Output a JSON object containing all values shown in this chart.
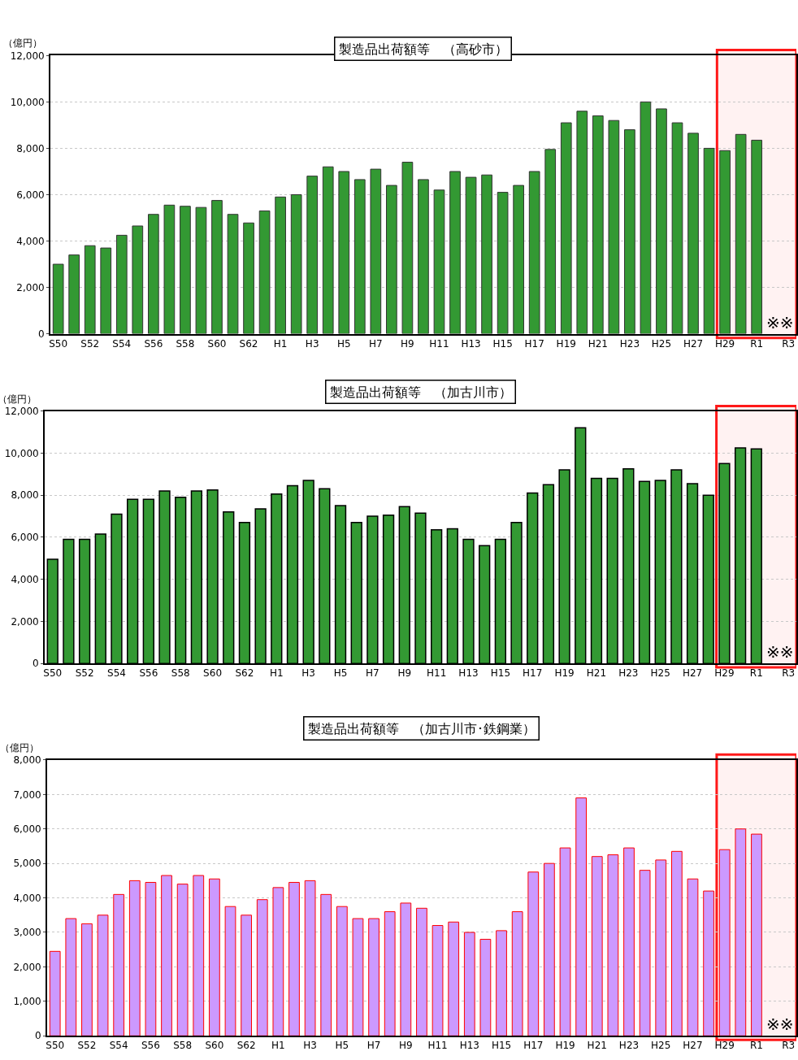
{
  "chart_data": [
    {
      "type": "bar",
      "title": "製造品出荷額等　（高砂市）",
      "ylabel": "（億円）",
      "categories": [
        "S50",
        null,
        "S52",
        null,
        "S54",
        null,
        "S56",
        null,
        "S58",
        null,
        "S60",
        null,
        "S62",
        null,
        "H1",
        null,
        "H3",
        null,
        "H5",
        null,
        "H7",
        null,
        "H9",
        null,
        "H11",
        null,
        "H13",
        null,
        "H15",
        null,
        "H17",
        null,
        "H19",
        null,
        "H21",
        null,
        "H23",
        null,
        "H25",
        null,
        "H27",
        null,
        "H29",
        null,
        "R1",
        null,
        "R3"
      ],
      "series": [
        {
          "color": "#339933",
          "values": [
            3000,
            3400,
            3800,
            3700,
            4250,
            4650,
            5150,
            5550,
            5500,
            5450,
            5750,
            5150,
            4780,
            5300,
            5900,
            6000,
            6800,
            7200,
            7000,
            6650,
            7100,
            6400,
            7400,
            6650,
            6200,
            7000,
            6750,
            6850,
            6100,
            6400,
            7000,
            7950,
            9100,
            9600,
            9400,
            9200,
            8800,
            10000,
            9700,
            9100,
            8650,
            8000,
            7900,
            8600,
            8350,
            null,
            null
          ]
        }
      ],
      "ylim": [
        0,
        12000
      ],
      "yticks": [
        0,
        {
          "value": 2000,
          "label": "2,000"
        },
        {
          "value": 4000,
          "label": "4,000"
        },
        {
          "value": 6000,
          "label": "6,000"
        },
        {
          "value": 8000,
          "label": "8,000"
        },
        {
          "value": 10000,
          "label": "10,000"
        },
        {
          "value": 12000,
          "label": "12,000"
        }
      ],
      "grid": "y",
      "bands": [
        {
          "axis": "x",
          "from": "H29",
          "to": "R3",
          "label": null,
          "color": "#ff0000"
        }
      ],
      "annotations": [
        "※※"
      ]
    },
    {
      "type": "bar",
      "title": "製造品出荷額等　（加古川市）",
      "ylabel": "（億円）",
      "categories": [
        "S50",
        null,
        "S52",
        null,
        "S54",
        null,
        "S56",
        null,
        "S58",
        null,
        "S60",
        null,
        "S62",
        null,
        "H1",
        null,
        "H3",
        null,
        "H5",
        null,
        "H7",
        null,
        "H9",
        null,
        "H11",
        null,
        "H13",
        null,
        "H15",
        null,
        "H17",
        null,
        "H19",
        null,
        "H21",
        null,
        "H23",
        null,
        "H25",
        null,
        "H27",
        null,
        "H29",
        null,
        "R1",
        null,
        "R3"
      ],
      "series": [
        {
          "color": "#339933",
          "values": [
            4950,
            5900,
            5900,
            6150,
            7100,
            7800,
            7800,
            8200,
            7900,
            8200,
            8250,
            7200,
            6700,
            7350,
            8050,
            8450,
            8700,
            8300,
            7500,
            6700,
            7000,
            7050,
            7450,
            7150,
            6350,
            6400,
            5900,
            5600,
            5900,
            6700,
            8100,
            8500,
            9200,
            11200,
            8800,
            8800,
            9250,
            8650,
            8700,
            9200,
            8550,
            8000,
            9500,
            10250,
            10200,
            null,
            null
          ]
        }
      ],
      "ylim": [
        0,
        12000
      ],
      "yticks": [
        0,
        {
          "value": 2000,
          "label": "2,000"
        },
        {
          "value": 4000,
          "label": "4,000"
        },
        {
          "value": 6000,
          "label": "6,000"
        },
        {
          "value": 8000,
          "label": "8,000"
        },
        {
          "value": 10000,
          "label": "10,000"
        },
        {
          "value": 12000,
          "label": "12,000"
        }
      ],
      "grid": "y",
      "bands": [
        {
          "axis": "x",
          "from": "H29",
          "to": "R3",
          "label": null,
          "color": "#ff0000"
        }
      ],
      "annotations": [
        "※※"
      ]
    },
    {
      "type": "bar",
      "title": "製造品出荷額等　（加古川市･鉄鋼業）",
      "ylabel": "（億円）",
      "categories": [
        "S50",
        null,
        "S52",
        null,
        "S54",
        null,
        "S56",
        null,
        "S58",
        null,
        "S60",
        null,
        "S62",
        null,
        "H1",
        null,
        "H3",
        null,
        "H5",
        null,
        "H7",
        null,
        "H9",
        null,
        "H11",
        null,
        "H13",
        null,
        "H15",
        null,
        "H17",
        null,
        "H19",
        null,
        "H21",
        null,
        "H23",
        null,
        "H25",
        null,
        "H27",
        null,
        "H29",
        null,
        "R1",
        null,
        "R3"
      ],
      "series": [
        {
          "color": "#cc99ff",
          "values": [
            2450,
            3400,
            3250,
            3500,
            4100,
            4500,
            4450,
            4650,
            4400,
            4650,
            4550,
            3750,
            3500,
            3950,
            4300,
            4450,
            4500,
            4100,
            3750,
            3400,
            3400,
            3600,
            3850,
            3700,
            3200,
            3300,
            3000,
            2800,
            3050,
            3600,
            4750,
            5000,
            5450,
            6900,
            5200,
            5250,
            5450,
            4800,
            5100,
            5350,
            4550,
            4200,
            5400,
            6000,
            5850,
            null,
            null
          ]
        }
      ],
      "ylim": [
        0,
        8000
      ],
      "yticks": [
        0,
        {
          "value": 1000,
          "label": "1,000"
        },
        {
          "value": 2000,
          "label": "2,000"
        },
        {
          "value": 3000,
          "label": "3,000"
        },
        {
          "value": 4000,
          "label": "4,000"
        },
        {
          "value": 5000,
          "label": "5,000"
        },
        {
          "value": 6000,
          "label": "6,000"
        },
        {
          "value": 7000,
          "label": "7,000"
        },
        {
          "value": 8000,
          "label": "8,000"
        }
      ],
      "grid": "y",
      "bands": [
        {
          "axis": "x",
          "from": "H29",
          "to": "R3",
          "label": null,
          "color": "#ff0000"
        }
      ],
      "annotations": [
        "※※"
      ]
    }
  ]
}
